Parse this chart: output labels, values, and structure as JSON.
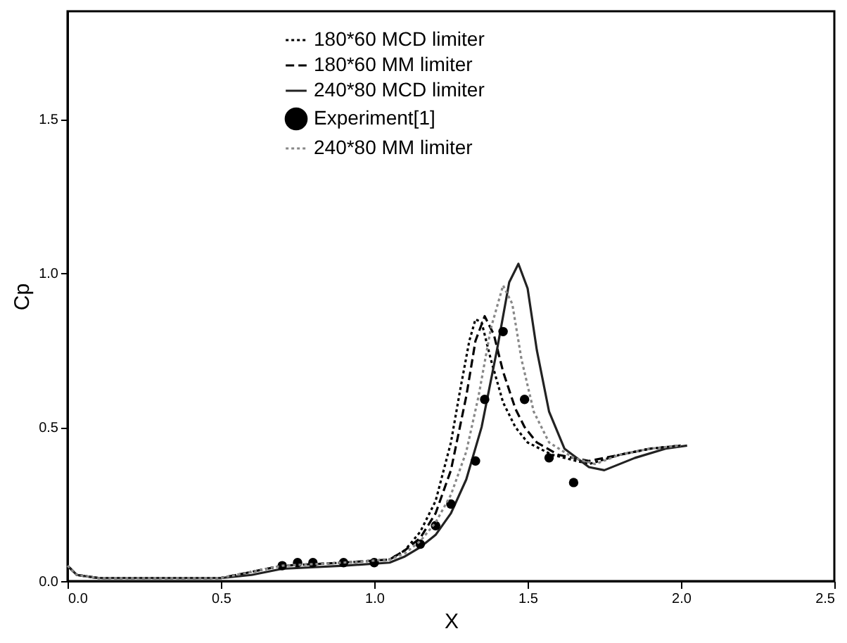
{
  "chart_data": {
    "type": "line",
    "xlabel": "X",
    "ylabel": "Cp",
    "xlim": [
      0,
      2.5
    ],
    "ylim": [
      0,
      1.85
    ],
    "xticks": [
      {
        "value": 0,
        "label": "0.0"
      },
      0.5,
      {
        "value": 1,
        "label": "1.0"
      },
      1.5,
      {
        "value": 2,
        "label": "2.0"
      },
      2.5
    ],
    "yticks": [
      {
        "value": 0,
        "label": "0.0"
      },
      0.5,
      {
        "value": 1,
        "label": "1.0"
      },
      1.5
    ],
    "grid": false,
    "legend": "top",
    "series": [
      {
        "name": "180*60 MCD limiter",
        "color": "#000000",
        "line_style": "dotted",
        "x": [
          0,
          0.03,
          0.1,
          0.5,
          0.6,
          0.7,
          0.9,
          1.05,
          1.1,
          1.15,
          1.2,
          1.25,
          1.28,
          1.31,
          1.33,
          1.35,
          1.38,
          1.42,
          1.46,
          1.5,
          1.58,
          1.7,
          1.8,
          1.9,
          2.0
        ],
        "values": [
          0.05,
          0.02,
          0.01,
          0.01,
          0.03,
          0.05,
          0.06,
          0.07,
          0.1,
          0.16,
          0.26,
          0.45,
          0.62,
          0.78,
          0.85,
          0.84,
          0.72,
          0.58,
          0.5,
          0.45,
          0.41,
          0.38,
          0.41,
          0.43,
          0.44
        ]
      },
      {
        "name": "180*60 MM limiter",
        "color": "#000000",
        "line_style": "dashed",
        "x": [
          0,
          0.03,
          0.1,
          0.5,
          0.6,
          0.7,
          0.9,
          1.05,
          1.1,
          1.15,
          1.2,
          1.25,
          1.3,
          1.33,
          1.36,
          1.39,
          1.42,
          1.46,
          1.49,
          1.53,
          1.6,
          1.7,
          1.8,
          1.9,
          2.0
        ],
        "values": [
          0.05,
          0.02,
          0.01,
          0.01,
          0.03,
          0.05,
          0.06,
          0.07,
          0.1,
          0.14,
          0.22,
          0.36,
          0.6,
          0.78,
          0.86,
          0.8,
          0.68,
          0.56,
          0.5,
          0.45,
          0.41,
          0.39,
          0.41,
          0.43,
          0.44
        ]
      },
      {
        "name": "240*80 MCD limiter",
        "color": "#222222",
        "line_style": "solid",
        "x": [
          0,
          0.03,
          0.1,
          0.5,
          0.6,
          0.7,
          0.9,
          1.05,
          1.1,
          1.15,
          1.2,
          1.25,
          1.3,
          1.35,
          1.4,
          1.44,
          1.47,
          1.5,
          1.53,
          1.57,
          1.62,
          1.7,
          1.75,
          1.85,
          1.95,
          2.02
        ],
        "values": [
          0.05,
          0.02,
          0.01,
          0.01,
          0.02,
          0.04,
          0.05,
          0.06,
          0.08,
          0.11,
          0.15,
          0.22,
          0.33,
          0.5,
          0.75,
          0.97,
          1.03,
          0.95,
          0.75,
          0.55,
          0.43,
          0.37,
          0.36,
          0.4,
          0.43,
          0.44
        ]
      },
      {
        "name": "Experiment[1]",
        "type": "scatter",
        "marker": "circle",
        "color": "#000000",
        "x": [
          0.7,
          0.75,
          0.8,
          0.9,
          1.0,
          1.15,
          1.2,
          1.25,
          1.33,
          1.36,
          1.42,
          1.49,
          1.57,
          1.65
        ],
        "values": [
          0.05,
          0.06,
          0.06,
          0.06,
          0.06,
          0.12,
          0.18,
          0.25,
          0.39,
          0.59,
          0.81,
          0.59,
          0.4,
          0.32
        ]
      },
      {
        "name": "240*80 MM limiter",
        "color": "#888888",
        "line_style": "dotted",
        "x": [
          0,
          0.03,
          0.1,
          0.5,
          0.6,
          0.7,
          0.9,
          1.05,
          1.1,
          1.15,
          1.2,
          1.25,
          1.3,
          1.34,
          1.38,
          1.42,
          1.45,
          1.48,
          1.52,
          1.57,
          1.65,
          1.72,
          1.8,
          1.9,
          2.0
        ],
        "values": [
          0.05,
          0.02,
          0.01,
          0.01,
          0.03,
          0.05,
          0.06,
          0.07,
          0.09,
          0.13,
          0.19,
          0.28,
          0.42,
          0.6,
          0.82,
          0.96,
          0.9,
          0.72,
          0.55,
          0.45,
          0.4,
          0.38,
          0.41,
          0.43,
          0.44
        ]
      }
    ]
  }
}
